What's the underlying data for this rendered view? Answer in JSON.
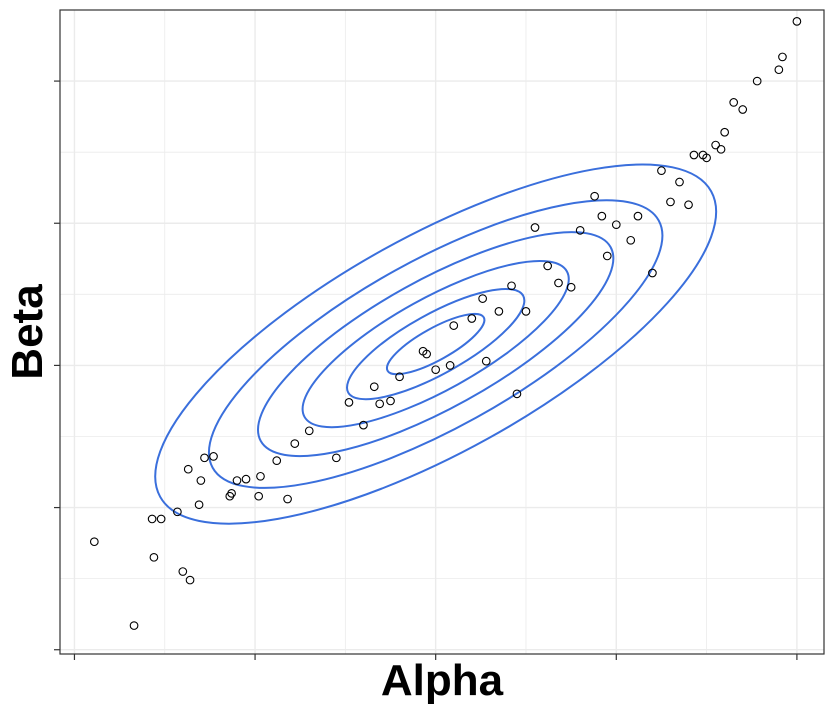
{
  "chart_data": {
    "type": "scatter",
    "title": "",
    "xlabel": "Alpha",
    "ylabel": "Beta",
    "x_tick_labels": [],
    "y_tick_labels": [],
    "xlim": [
      -0.08,
      4.15
    ],
    "ylim": [
      -0.03,
      4.5
    ],
    "x_ticks": [
      0,
      1,
      2,
      3,
      4
    ],
    "y_ticks": [
      0,
      1,
      2,
      3,
      4
    ],
    "grid": true,
    "legend": "none",
    "colors": {
      "points": "#000000",
      "contours": "#3a6fdc",
      "grid": "#ebebeb",
      "frame": "#333333"
    },
    "series": [
      {
        "kind": "points",
        "x": [
          0.11,
          0.33,
          0.43,
          0.44,
          0.48,
          0.57,
          0.6,
          0.63,
          0.64,
          0.69,
          0.7,
          0.72,
          0.77,
          0.86,
          0.87,
          0.9,
          0.95,
          1.03,
          1.12,
          1.22,
          1.3,
          1.45,
          1.52,
          1.6,
          1.69,
          1.75,
          1.8,
          1.66,
          1.93,
          2.0,
          2.08,
          2.1,
          2.2,
          2.26,
          2.28,
          2.35,
          2.42,
          2.5,
          2.55,
          2.62,
          2.68,
          2.75,
          2.8,
          2.88,
          2.92,
          2.95,
          3.0,
          3.08,
          3.12,
          3.2,
          3.25,
          3.3,
          3.35,
          3.4,
          3.43,
          3.48,
          3.5,
          3.55,
          3.58,
          3.6,
          3.65,
          3.7,
          3.78,
          3.9,
          3.92,
          4.0,
          2.45,
          1.95,
          1.02,
          1.18
        ],
        "y": [
          0.76,
          0.17,
          0.92,
          0.65,
          0.92,
          0.97,
          0.55,
          1.27,
          0.49,
          1.02,
          1.19,
          1.35,
          1.36,
          1.08,
          1.1,
          1.19,
          1.2,
          1.22,
          1.33,
          1.45,
          1.54,
          1.35,
          1.74,
          1.58,
          1.73,
          1.75,
          1.92,
          1.85,
          2.1,
          1.97,
          2.0,
          2.28,
          2.33,
          2.47,
          2.03,
          2.38,
          2.56,
          2.38,
          2.97,
          2.7,
          2.58,
          2.55,
          2.95,
          3.19,
          3.05,
          2.77,
          2.99,
          2.88,
          3.05,
          2.65,
          3.37,
          3.15,
          3.29,
          3.13,
          3.48,
          3.48,
          3.46,
          3.55,
          3.52,
          3.64,
          3.85,
          3.8,
          4.0,
          4.08,
          4.17,
          4.42,
          1.8,
          2.08,
          1.08,
          1.06
        ]
      },
      {
        "kind": "density-contours",
        "center": [
          2.0,
          2.15
        ],
        "levels": 6
      }
    ]
  }
}
